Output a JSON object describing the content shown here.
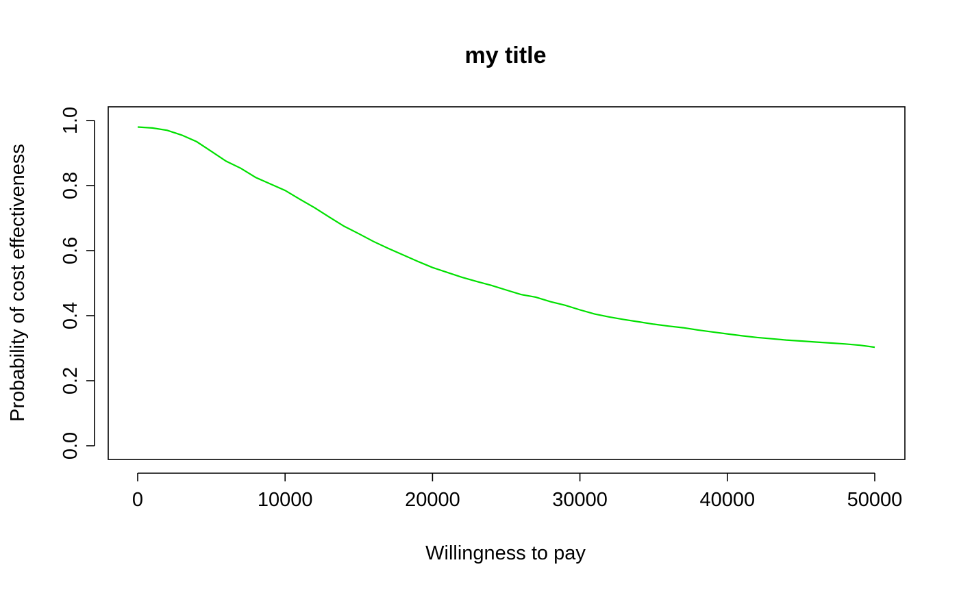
{
  "chart_data": {
    "type": "line",
    "title": "my title",
    "xlabel": "Willingness to pay",
    "ylabel": "Probability of cost effectiveness",
    "xlim": [
      0,
      50000
    ],
    "ylim": [
      0.0,
      1.0
    ],
    "x_ticks": [
      0,
      10000,
      20000,
      30000,
      40000,
      50000
    ],
    "x_tick_labels": [
      "0",
      "10000",
      "20000",
      "30000",
      "40000",
      "50000"
    ],
    "y_ticks": [
      0.0,
      0.2,
      0.4,
      0.6,
      0.8,
      1.0
    ],
    "y_tick_labels": [
      "0.0",
      "0.2",
      "0.4",
      "0.6",
      "0.8",
      "1.0"
    ],
    "grid": false,
    "legend": "none",
    "line_color": "#00e000",
    "series": [
      {
        "x": [
          0,
          1000,
          2000,
          3000,
          4000,
          5000,
          6000,
          7000,
          8000,
          9000,
          10000,
          11000,
          12000,
          13000,
          14000,
          15000,
          16000,
          17000,
          18000,
          19000,
          20000,
          21000,
          22000,
          23000,
          24000,
          25000,
          26000,
          27000,
          28000,
          29000,
          30000,
          31000,
          32000,
          33000,
          34000,
          35000,
          36000,
          37000,
          38000,
          39000,
          40000,
          41000,
          42000,
          43000,
          44000,
          45000,
          46000,
          47000,
          48000,
          49000,
          50000
        ],
        "values": [
          0.98,
          0.977,
          0.97,
          0.955,
          0.935,
          0.905,
          0.875,
          0.853,
          0.825,
          0.805,
          0.785,
          0.758,
          0.732,
          0.703,
          0.675,
          0.652,
          0.628,
          0.607,
          0.587,
          0.567,
          0.548,
          0.533,
          0.518,
          0.505,
          0.493,
          0.479,
          0.465,
          0.457,
          0.443,
          0.432,
          0.418,
          0.405,
          0.396,
          0.388,
          0.381,
          0.374,
          0.368,
          0.363,
          0.356,
          0.35,
          0.344,
          0.338,
          0.333,
          0.329,
          0.325,
          0.322,
          0.319,
          0.316,
          0.313,
          0.309,
          0.303
        ]
      }
    ]
  }
}
